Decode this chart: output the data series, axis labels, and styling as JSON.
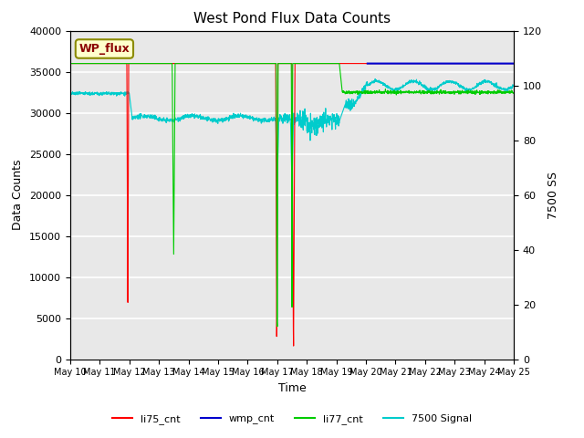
{
  "title": "West Pond Flux Data Counts",
  "xlabel": "Time",
  "ylabel_left": "Data Counts",
  "ylabel_right": "7500 SS",
  "ylim_left": [
    0,
    40000
  ],
  "ylim_right": [
    0,
    120
  ],
  "background_color": "#e8e8e8",
  "annotation_text": "WP_flux",
  "annotation_box_color": "#ffffcc",
  "annotation_box_edge": "#8B8B00",
  "annotation_text_color": "#8B0000",
  "line_colors": {
    "li75_cnt": "#ff0000",
    "wmp_cnt": "#0000cd",
    "li77_cnt": "#00cc00",
    "signal7500": "#00cccc"
  },
  "tick_labels": [
    "May 10",
    "May 11",
    "May 12",
    "May 13",
    "May 14",
    "May 15",
    "May 16",
    "May 17",
    "May 18",
    "May 19",
    "May 20",
    "May 21",
    "May 22",
    "May 23",
    "May 24",
    "May 25"
  ],
  "yticks_left": [
    0,
    5000,
    10000,
    15000,
    20000,
    25000,
    30000,
    35000,
    40000
  ],
  "yticks_right": [
    0,
    20,
    40,
    60,
    80,
    100,
    120
  ]
}
